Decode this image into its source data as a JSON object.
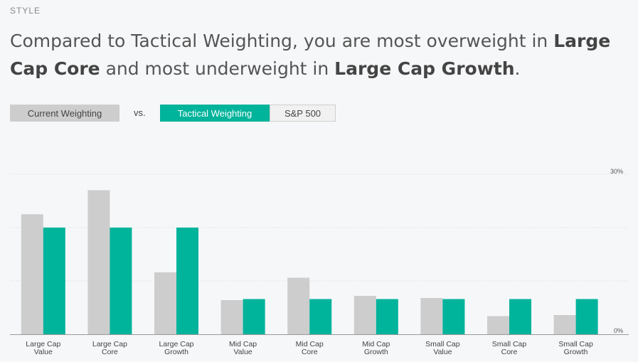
{
  "section_label": "STYLE",
  "headline": {
    "p1": "Compared to Tactical Weighting, you are most overweight in ",
    "b1": "Large Cap Core",
    "p2": " and most underweight in ",
    "b2": "Large Cap Growth",
    "p3": "."
  },
  "controls": {
    "current_label": "Current Weighting",
    "vs_label": "vs.",
    "tabs": [
      {
        "label": "Tactical Weighting",
        "active": true
      },
      {
        "label": "S&P 500",
        "active": false
      }
    ]
  },
  "colors": {
    "current": "#cdcdcd",
    "comparison": "#00b39b",
    "grid": "#d8d8d8",
    "axis": "#999999"
  },
  "chart_data": {
    "type": "bar",
    "categories": [
      [
        "Large Cap",
        "Value"
      ],
      [
        "Large Cap",
        "Core"
      ],
      [
        "Large Cap",
        "Growth"
      ],
      [
        "Mid Cap",
        "Value"
      ],
      [
        "Mid Cap",
        "Core"
      ],
      [
        "Mid Cap",
        "Growth"
      ],
      [
        "Small Cap",
        "Value"
      ],
      [
        "Small Cap",
        "Core"
      ],
      [
        "Small Cap",
        "Growth"
      ]
    ],
    "series": [
      {
        "values": [
          22.5,
          27.0,
          11.6,
          6.4,
          10.6,
          7.2,
          6.8,
          3.4,
          3.6
        ]
      },
      {
        "values": [
          20.0,
          20.0,
          20.0,
          6.6,
          6.6,
          6.6,
          6.6,
          6.6,
          6.6
        ]
      }
    ],
    "ylim": [
      0,
      30
    ],
    "y_tick_labels": [
      "30%",
      "0%"
    ],
    "grid": true
  }
}
